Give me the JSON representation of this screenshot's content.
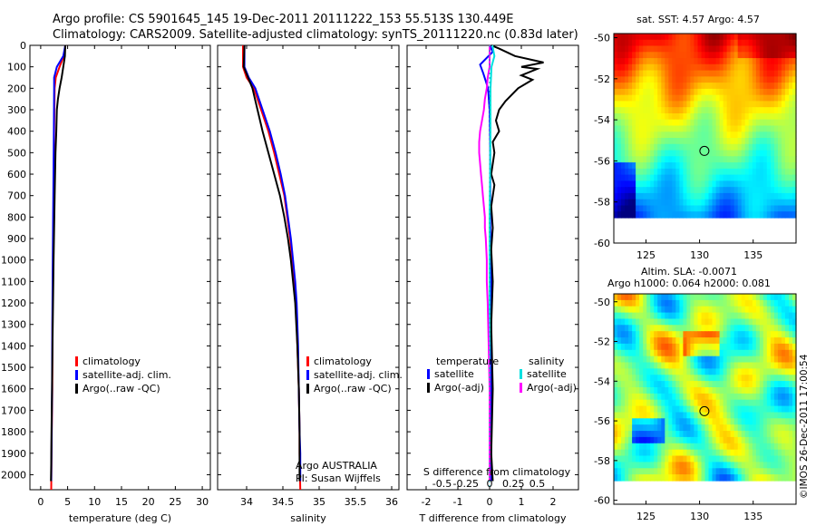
{
  "title": {
    "line1": "Argo profile: CS 5901645_145 19-Dec-2011 20111222_153 55.513S 130.449E",
    "line2": "Climatology: CARS2009. Satellite-adjusted climatology: synTS_20111220.nc (0.83d later)"
  },
  "colors": {
    "climatology": "#ff0000",
    "satellite": "#0000ff",
    "argo": "#000000",
    "sat_temp": "#0000ff",
    "sat_sal": "#00e0e0",
    "argo_sal_diff": "#ff00ff",
    "zero_line": "#00b0b0"
  },
  "chart_data": [
    {
      "name_key": "temperature",
      "type": "line",
      "xlabel": "temperature (deg C)",
      "ylabel": "",
      "xlim": [
        -2,
        31.5
      ],
      "ylim": [
        2070,
        0
      ],
      "x_ticks": [
        0,
        5,
        10,
        15,
        20,
        25,
        30
      ],
      "x_tick_labels": [
        "0",
        "5",
        "10",
        "15",
        "20",
        "25",
        "30"
      ],
      "y_ticks": [
        0,
        100,
        200,
        300,
        400,
        500,
        600,
        700,
        800,
        900,
        1000,
        1100,
        1200,
        1300,
        1400,
        1500,
        1600,
        1700,
        1800,
        1900,
        2000
      ],
      "legend": [
        "climatology",
        "satellite-adj. clim.",
        "Argo(..raw -QC)"
      ],
      "series": [
        {
          "name": "climatology",
          "color_key": "climatology",
          "points": [
            [
              4.6,
              0
            ],
            [
              4.3,
              50
            ],
            [
              3.5,
              100
            ],
            [
              2.8,
              150
            ],
            [
              2.6,
              200
            ],
            [
              2.5,
              400
            ],
            [
              2.4,
              700
            ],
            [
              2.3,
              1000
            ],
            [
              2.2,
              1300
            ],
            [
              2.15,
              1600
            ],
            [
              2.0,
              1900
            ],
            [
              1.95,
              2070
            ]
          ]
        },
        {
          "name": "satellite-adj. clim.",
          "color_key": "satellite",
          "points": [
            [
              4.57,
              0
            ],
            [
              4.2,
              50
            ],
            [
              3.0,
              100
            ],
            [
              2.5,
              150
            ],
            [
              2.5,
              200
            ],
            [
              2.45,
              400
            ],
            [
              2.35,
              700
            ],
            [
              2.25,
              1000
            ],
            [
              2.15,
              1300
            ],
            [
              2.1,
              1600
            ],
            [
              2.0,
              1900
            ],
            [
              1.95,
              2030
            ]
          ]
        },
        {
          "name": "Argo(..raw -QC)",
          "color_key": "argo",
          "points": [
            [
              4.57,
              0
            ],
            [
              4.5,
              50
            ],
            [
              4.2,
              100
            ],
            [
              3.9,
              150
            ],
            [
              3.5,
              200
            ],
            [
              3.2,
              250
            ],
            [
              3.0,
              300
            ],
            [
              2.9,
              400
            ],
            [
              2.75,
              500
            ],
            [
              2.6,
              700
            ],
            [
              2.4,
              1000
            ],
            [
              2.3,
              1200
            ],
            [
              2.2,
              1400
            ],
            [
              2.1,
              1600
            ],
            [
              2.0,
              1800
            ],
            [
              1.95,
              1950
            ],
            [
              1.9,
              2030
            ]
          ]
        }
      ]
    },
    {
      "name_key": "salinity",
      "type": "line",
      "xlabel": "salinity",
      "ylabel": "",
      "xlim": [
        33.6,
        36.1
      ],
      "ylim": [
        2070,
        0
      ],
      "x_ticks": [
        34,
        34.5,
        35,
        35.5,
        36
      ],
      "x_tick_labels": [
        "34",
        "34.5",
        "35",
        "35.5",
        "36"
      ],
      "legend": [
        "climatology",
        "satellite-adj. clim.",
        "Argo(..raw -QC)"
      ],
      "annotation_lines": [
        "Argo AUSTRALIA",
        "PI: Susan Wijffels"
      ],
      "series": [
        {
          "name": "climatology",
          "color_key": "climatology",
          "points": [
            [
              33.95,
              0
            ],
            [
              33.95,
              100
            ],
            [
              34.0,
              150
            ],
            [
              34.1,
              200
            ],
            [
              34.2,
              300
            ],
            [
              34.3,
              400
            ],
            [
              34.38,
              500
            ],
            [
              34.45,
              600
            ],
            [
              34.52,
              700
            ],
            [
              34.56,
              800
            ],
            [
              34.6,
              900
            ],
            [
              34.63,
              1000
            ],
            [
              34.66,
              1100
            ],
            [
              34.68,
              1200
            ],
            [
              34.7,
              1400
            ],
            [
              34.72,
              1600
            ],
            [
              34.73,
              1800
            ],
            [
              34.73,
              1900
            ],
            [
              34.74,
              2070
            ]
          ]
        },
        {
          "name": "satellite-adj. clim.",
          "color_key": "satellite",
          "points": [
            [
              33.97,
              0
            ],
            [
              33.97,
              100
            ],
            [
              34.03,
              150
            ],
            [
              34.12,
              200
            ],
            [
              34.22,
              300
            ],
            [
              34.32,
              400
            ],
            [
              34.4,
              500
            ],
            [
              34.47,
              600
            ],
            [
              34.53,
              700
            ],
            [
              34.57,
              800
            ],
            [
              34.61,
              900
            ],
            [
              34.64,
              1000
            ],
            [
              34.67,
              1100
            ],
            [
              34.69,
              1200
            ],
            [
              34.71,
              1400
            ],
            [
              34.72,
              1600
            ],
            [
              34.73,
              1800
            ],
            [
              34.74,
              1900
            ],
            [
              34.74,
              2030
            ]
          ]
        },
        {
          "name": "Argo(..raw -QC)",
          "color_key": "argo",
          "points": [
            [
              33.97,
              0
            ],
            [
              33.96,
              100
            ],
            [
              34.02,
              150
            ],
            [
              34.08,
              200
            ],
            [
              34.15,
              300
            ],
            [
              34.22,
              400
            ],
            [
              34.3,
              500
            ],
            [
              34.38,
              600
            ],
            [
              34.46,
              700
            ],
            [
              34.52,
              800
            ],
            [
              34.57,
              900
            ],
            [
              34.61,
              1000
            ],
            [
              34.64,
              1100
            ],
            [
              34.67,
              1200
            ],
            [
              34.7,
              1400
            ],
            [
              34.72,
              1600
            ],
            [
              34.73,
              1800
            ],
            [
              34.73,
              1900
            ],
            [
              34.73,
              2030
            ]
          ]
        }
      ]
    },
    {
      "name_key": "difference",
      "type": "line",
      "xlabel": "T difference from climatology",
      "x2label": "S difference from climatology",
      "xlim": [
        -2.6,
        2.8
      ],
      "ylim": [
        2070,
        0
      ],
      "x_ticks": [
        -2,
        -1,
        0,
        1,
        2
      ],
      "x_tick_labels": [
        "-2",
        "-1",
        "0",
        "1",
        "2"
      ],
      "x2_ticks": [
        -0.5,
        -0.25,
        0,
        0.25,
        0.5
      ],
      "x2_tick_labels": [
        "-0.5",
        "-0.25",
        "0",
        "0.25",
        "0.5"
      ],
      "x2_scale": 3,
      "legend_left_title": "temperature",
      "legend_right_title": "salinity",
      "legend_left": [
        "satellite",
        "Argo(-adj)"
      ],
      "legend_right": [
        "satellite",
        "Argo(-adj)"
      ],
      "series": [
        {
          "name": "T satellite",
          "color_key": "sat_temp",
          "points": [
            [
              0,
              0
            ],
            [
              0.1,
              30
            ],
            [
              -0.3,
              90
            ],
            [
              -0.2,
              130
            ],
            [
              -0.05,
              200
            ],
            [
              0,
              300
            ],
            [
              0.02,
              500
            ],
            [
              0.02,
              800
            ],
            [
              0.05,
              1200
            ],
            [
              0.05,
              1600
            ],
            [
              0.05,
              2030
            ]
          ]
        },
        {
          "name": "T Argo(-adj)",
          "color_key": "argo",
          "points": [
            [
              0.05,
              0
            ],
            [
              0.3,
              15
            ],
            [
              0.8,
              50
            ],
            [
              1.7,
              80
            ],
            [
              1.0,
              100
            ],
            [
              1.5,
              110
            ],
            [
              1.0,
              140
            ],
            [
              1.35,
              160
            ],
            [
              0.9,
              200
            ],
            [
              0.5,
              260
            ],
            [
              0.3,
              300
            ],
            [
              0.2,
              350
            ],
            [
              0.3,
              400
            ],
            [
              0.1,
              450
            ],
            [
              0.15,
              500
            ],
            [
              0.05,
              600
            ],
            [
              0.15,
              650
            ],
            [
              0.05,
              750
            ],
            [
              0.1,
              850
            ],
            [
              0.05,
              950
            ],
            [
              0.1,
              1100
            ],
            [
              0.05,
              1300
            ],
            [
              0.1,
              1600
            ],
            [
              0.05,
              1900
            ],
            [
              0.1,
              2030
            ]
          ]
        },
        {
          "name": "S satellite",
          "color_key": "sat_sal",
          "points": [
            [
              0.03,
              0
            ],
            [
              0.05,
              50
            ],
            [
              0.02,
              100
            ],
            [
              0.01,
              200
            ],
            [
              0.01,
              400
            ],
            [
              0.0,
              800
            ],
            [
              0.0,
              1200
            ],
            [
              0.0,
              1600
            ],
            [
              0.0,
              2030
            ]
          ]
        },
        {
          "name": "S Argo(-adj)",
          "color_key": "argo_sal_diff",
          "points": [
            [
              0.0,
              0
            ],
            [
              0.0,
              100
            ],
            [
              -0.02,
              150
            ],
            [
              -0.03,
              200
            ],
            [
              -0.05,
              250
            ],
            [
              -0.06,
              300
            ],
            [
              -0.08,
              350
            ],
            [
              -0.1,
              400
            ],
            [
              -0.11,
              450
            ],
            [
              -0.11,
              500
            ],
            [
              -0.1,
              550
            ],
            [
              -0.09,
              600
            ],
            [
              -0.08,
              650
            ],
            [
              -0.07,
              700
            ],
            [
              -0.06,
              750
            ],
            [
              -0.05,
              800
            ],
            [
              -0.05,
              850
            ],
            [
              -0.04,
              900
            ],
            [
              -0.03,
              1000
            ],
            [
              -0.03,
              1100
            ],
            [
              -0.02,
              1200
            ],
            [
              -0.01,
              1400
            ],
            [
              0.0,
              1600
            ],
            [
              0.0,
              1800
            ],
            [
              0.0,
              2030
            ]
          ]
        }
      ]
    },
    {
      "name_key": "sst_map",
      "type": "heatmap",
      "title": "sat. SST: 4.57  Argo: 4.57",
      "xlim": [
        122,
        139
      ],
      "ylim": [
        -60,
        -49.8
      ],
      "x_ticks": [
        125,
        130,
        135
      ],
      "y_ticks": [
        -60,
        -58,
        -56,
        -54,
        -52,
        -50
      ],
      "x_tick_labels": [
        "125",
        "130",
        "135"
      ],
      "y_tick_labels": [
        "-60",
        "-58",
        "-56",
        "-54",
        "-52",
        "-50"
      ],
      "marker": [
        130.449,
        -55.513
      ]
    },
    {
      "name_key": "sla_map",
      "type": "heatmap",
      "title": "Altim. SLA: -0.0071",
      "subtitle": "Argo h1000: 0.064 h2000: 0.081",
      "xlim": [
        122,
        139
      ],
      "ylim": [
        -60.2,
        -49.6
      ],
      "x_ticks": [
        125,
        130,
        135
      ],
      "y_ticks": [
        -60,
        -58,
        -56,
        -54,
        -52,
        -50
      ],
      "x_tick_labels": [
        "125",
        "130",
        "135"
      ],
      "y_tick_labels": [
        "-60",
        "-58",
        "-56",
        "-54",
        "-52",
        "-50"
      ],
      "marker": [
        130.449,
        -55.513
      ]
    }
  ],
  "credit": "©IMOS 26-Dec-2011 17:00:54"
}
